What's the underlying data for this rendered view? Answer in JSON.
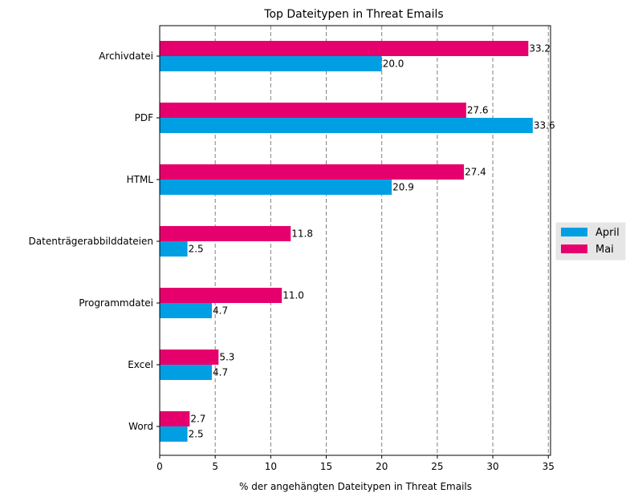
{
  "chart_data": {
    "type": "bar",
    "orientation": "horizontal",
    "title": "Top Dateitypen in Threat Emails",
    "xlabel": "% der angehängten Dateitypen in Threat Emails",
    "ylabel": "",
    "xlim": [
      0,
      35.2
    ],
    "xticks": [
      0,
      5,
      10,
      15,
      20,
      25,
      30,
      35
    ],
    "grid": "vertical dashed",
    "legend_position": "right",
    "categories": [
      "Archivdatei",
      "PDF",
      "HTML",
      "Datenträgerabbilddateien",
      "Programmdatei",
      "Excel",
      "Word"
    ],
    "series": [
      {
        "name": "April",
        "color": "#009fe3",
        "values": [
          20.0,
          33.6,
          20.9,
          2.5,
          4.7,
          4.7,
          2.5
        ],
        "labels": [
          "20.0",
          "33.6",
          "20.9",
          "2.5",
          "4.7",
          "4.7",
          "2.5"
        ]
      },
      {
        "name": "Mai",
        "color": "#e6006e",
        "values": [
          33.2,
          27.6,
          27.4,
          11.8,
          11.0,
          5.3,
          2.7
        ],
        "labels": [
          "33.2",
          "27.6",
          "27.4",
          "11.8",
          "11.0",
          "5.3",
          "2.7"
        ]
      }
    ]
  }
}
